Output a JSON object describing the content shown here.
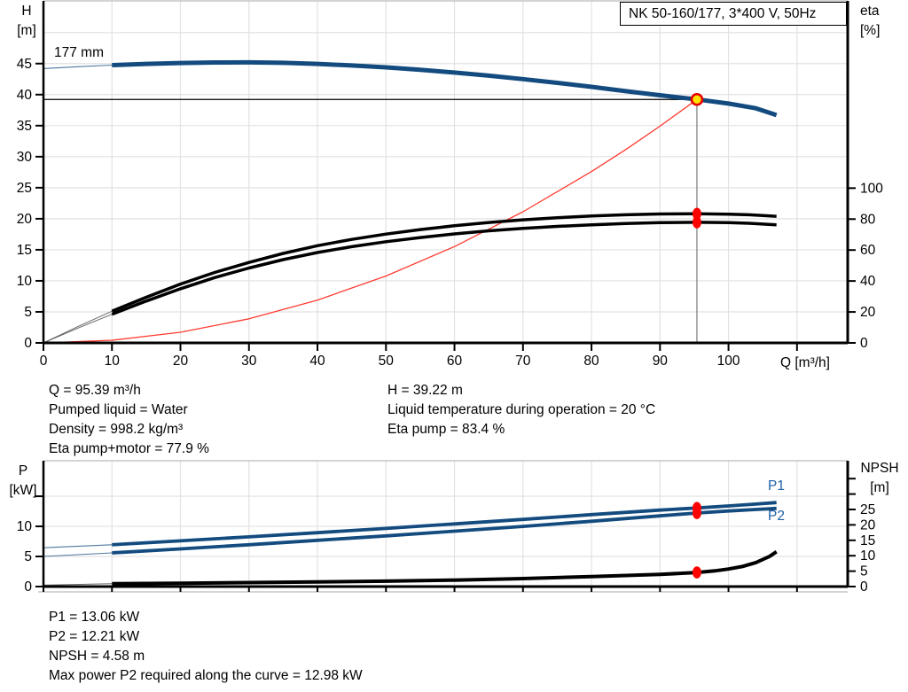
{
  "title": "NK 50-160/177, 3*400 V, 50Hz",
  "colors": {
    "curve_blue": "#134b7f",
    "curve_black": "#000000",
    "system_red": "#ff3b30",
    "marker_red": "#ff0000",
    "marker_yellow": "#ffe400",
    "marker_ring": "#e60000",
    "gridline": "#e2e2e2",
    "frame_gray": "#aaaaaa",
    "crosshair_v": "#7a7a7a",
    "crosshair_h": "#000000",
    "label_blue": "#1d5fa7",
    "thin_black": "#666666"
  },
  "top_chart": {
    "left_axis_title_line1": "H",
    "left_axis_title_line2": "[m]",
    "right_axis_title_line1": "eta",
    "right_axis_title_line2": "[%]",
    "x_axis_title": "Q [m³/h]",
    "impeller_label": "177 mm"
  },
  "bottom_chart": {
    "left_axis_title_line1": "P",
    "left_axis_title_line2": "[kW]",
    "right_axis_title_line1": "NPSH",
    "right_axis_title_line2": "[m]",
    "p1_label": "P1",
    "p2_label": "P2"
  },
  "info_top_left": [
    "Q = 95.39 m³/h",
    "Pumped liquid = Water",
    "Density = 998.2 kg/m³",
    "Eta pump+motor = 77.9 %"
  ],
  "info_top_right": [
    "H = 39.22 m",
    "Liquid temperature during operation = 20 °C",
    "Eta pump = 83.4 %"
  ],
  "info_bottom": [
    "P1 = 13.06 kW",
    "P2 = 12.21 kW",
    "NPSH = 4.58 m",
    "Max power P2 required along the curve = 12.98 kW"
  ],
  "chart_data": [
    {
      "id": "head-efficiency-chart",
      "type": "line",
      "title": "NK 50-160/177, 3*400 V, 50Hz",
      "xlabel": "Q [m³/h]",
      "ylabel_left": "H [m]",
      "ylabel_right": "eta [%]",
      "xlim": [
        0,
        117.4
      ],
      "ylim_left": [
        0,
        55.1
      ],
      "ylim_right": [
        0,
        221
      ],
      "x_ticks": [
        0,
        10,
        20,
        30,
        40,
        50,
        60,
        70,
        80,
        90,
        100,
        110
      ],
      "x_tick_labels": [
        "0",
        "10",
        "20",
        "30",
        "40",
        "50",
        "60",
        "70",
        "80",
        "90",
        "100",
        ""
      ],
      "y_ticks_left": [
        0,
        5,
        10,
        15,
        20,
        25,
        30,
        35,
        40,
        45
      ],
      "y_tick_labels_left": [
        "0",
        "5",
        "10",
        "15",
        "20",
        "25",
        "30",
        "35",
        "40",
        "45"
      ],
      "y_gridlines_left": [
        5,
        10,
        15,
        20,
        25,
        30,
        35,
        40,
        45,
        50
      ],
      "y_ticks_right": [
        0,
        20,
        40,
        60,
        80,
        100
      ],
      "y_tick_labels_right": [
        "0",
        "20",
        "40",
        "60",
        "80",
        "100"
      ],
      "series": [
        {
          "name": "system-curve",
          "axis": "left",
          "style": "red-thin",
          "thin_until": 0,
          "points": [
            [
              0,
              0
            ],
            [
              10,
              0.43
            ],
            [
              20,
              1.72
            ],
            [
              30,
              3.88
            ],
            [
              40,
              6.9
            ],
            [
              50,
              10.78
            ],
            [
              60,
              15.52
            ],
            [
              70,
              21.13
            ],
            [
              80,
              27.6
            ],
            [
              85,
              31.15
            ],
            [
              90,
              34.92
            ],
            [
              95.39,
              39.22
            ]
          ]
        },
        {
          "name": "eta-pump-curve",
          "axis": "right",
          "style": "black-thick",
          "thin_until": 10,
          "points": [
            [
              0,
              0
            ],
            [
              5,
              10.5
            ],
            [
              10,
              20.5
            ],
            [
              15,
              29.5
            ],
            [
              20,
              38
            ],
            [
              25,
              45.5
            ],
            [
              30,
              52
            ],
            [
              35,
              57.8
            ],
            [
              40,
              62.8
            ],
            [
              45,
              66.9
            ],
            [
              50,
              70.3
            ],
            [
              55,
              73.2
            ],
            [
              60,
              75.7
            ],
            [
              65,
              77.8
            ],
            [
              70,
              79.5
            ],
            [
              75,
              80.9
            ],
            [
              80,
              82
            ],
            [
              85,
              82.8
            ],
            [
              90,
              83.3
            ],
            [
              95.39,
              83.4
            ],
            [
              100,
              83.2
            ],
            [
              103,
              82.8
            ],
            [
              107,
              81.8
            ]
          ]
        },
        {
          "name": "eta-pump-motor-curve",
          "axis": "right",
          "style": "black-thick",
          "thin_until": 10,
          "points": [
            [
              0,
              0
            ],
            [
              5,
              9.5
            ],
            [
              10,
              18.5
            ],
            [
              15,
              27
            ],
            [
              20,
              35
            ],
            [
              25,
              42.2
            ],
            [
              30,
              48.4
            ],
            [
              35,
              53.8
            ],
            [
              40,
              58.4
            ],
            [
              45,
              62.2
            ],
            [
              50,
              65.4
            ],
            [
              55,
              68.1
            ],
            [
              60,
              70.4
            ],
            [
              65,
              72.4
            ],
            [
              70,
              74
            ],
            [
              75,
              75.3
            ],
            [
              80,
              76.3
            ],
            [
              85,
              77.1
            ],
            [
              90,
              77.7
            ],
            [
              95.39,
              77.9
            ],
            [
              100,
              77.7
            ],
            [
              103,
              77.3
            ],
            [
              107,
              76.3
            ]
          ]
        },
        {
          "name": "head-curve-177mm",
          "axis": "left",
          "style": "blue-thick",
          "thin_until": 10,
          "points": [
            [
              0,
              44.2
            ],
            [
              5,
              44.5
            ],
            [
              10,
              44.75
            ],
            [
              15,
              44.95
            ],
            [
              20,
              45.1
            ],
            [
              25,
              45.18
            ],
            [
              30,
              45.2
            ],
            [
              35,
              45.12
            ],
            [
              40,
              44.95
            ],
            [
              45,
              44.7
            ],
            [
              50,
              44.4
            ],
            [
              55,
              44.0
            ],
            [
              60,
              43.55
            ],
            [
              65,
              43.05
            ],
            [
              70,
              42.5
            ],
            [
              75,
              41.9
            ],
            [
              80,
              41.25
            ],
            [
              85,
              40.55
            ],
            [
              90,
              39.9
            ],
            [
              95.39,
              39.22
            ],
            [
              100,
              38.55
            ],
            [
              104,
              37.8
            ],
            [
              107,
              36.7
            ]
          ]
        }
      ],
      "crosshair": {
        "q": 95.39,
        "h": 39.22
      },
      "markers": [
        {
          "name": "eta-pump-point",
          "axis": "right",
          "q": 95.39,
          "v": 83.4,
          "kind": "red"
        },
        {
          "name": "eta-pump-motor-point",
          "axis": "right",
          "q": 95.39,
          "v": 77.9,
          "kind": "red"
        },
        {
          "name": "duty-point",
          "axis": "left",
          "q": 95.39,
          "v": 39.22,
          "kind": "yellow"
        }
      ]
    },
    {
      "id": "power-npsh-chart",
      "type": "line",
      "xlabel": "",
      "ylabel_left": "P [kW]",
      "ylabel_right": "NPSH [m]",
      "xlim": [
        0,
        117.4
      ],
      "ylim_left": [
        0,
        20.9
      ],
      "ylim_right": [
        0,
        40.8
      ],
      "x_ticks": [
        0,
        10,
        20,
        30,
        40,
        50,
        60,
        70,
        80,
        90,
        100,
        110
      ],
      "x_tick_labels": [
        "",
        "",
        "",
        "",
        "",
        "",
        "",
        "",
        "",
        "",
        "",
        ""
      ],
      "y_ticks_left": [
        0,
        5,
        10,
        15
      ],
      "y_tick_labels_left": [
        "0",
        "5",
        "10",
        ""
      ],
      "y_gridlines_left": [
        5,
        10,
        15
      ],
      "y_ticks_right": [
        0,
        5,
        10,
        15,
        20,
        25,
        30,
        35
      ],
      "y_tick_labels_right": [
        "0",
        "5",
        "10",
        "15",
        "20",
        "25",
        "",
        ""
      ],
      "series": [
        {
          "name": "p1-curve",
          "axis": "left",
          "style": "blue-mid",
          "thin_until": 10,
          "points": [
            [
              0,
              6.45
            ],
            [
              10,
              6.95
            ],
            [
              20,
              7.6
            ],
            [
              30,
              8.25
            ],
            [
              40,
              8.95
            ],
            [
              50,
              9.65
            ],
            [
              60,
              10.4
            ],
            [
              70,
              11.15
            ],
            [
              80,
              11.95
            ],
            [
              90,
              12.7
            ],
            [
              95.39,
              13.06
            ],
            [
              100,
              13.4
            ],
            [
              104,
              13.7
            ],
            [
              107,
              13.95
            ]
          ]
        },
        {
          "name": "p2-curve",
          "axis": "left",
          "style": "blue-mid",
          "thin_until": 10,
          "points": [
            [
              0,
              5.0
            ],
            [
              10,
              5.6
            ],
            [
              20,
              6.25
            ],
            [
              30,
              6.95
            ],
            [
              40,
              7.68
            ],
            [
              50,
              8.42
            ],
            [
              60,
              9.2
            ],
            [
              70,
              10.0
            ],
            [
              80,
              10.85
            ],
            [
              90,
              11.75
            ],
            [
              95.39,
              12.21
            ],
            [
              100,
              12.55
            ],
            [
              104,
              12.8
            ],
            [
              107,
              12.98
            ]
          ]
        },
        {
          "name": "npsh-curve",
          "axis": "right",
          "style": "black-npsh",
          "thin_until": 10,
          "points": [
            [
              0,
              0.45
            ],
            [
              10,
              0.95
            ],
            [
              20,
              1.1
            ],
            [
              30,
              1.3
            ],
            [
              40,
              1.5
            ],
            [
              50,
              1.75
            ],
            [
              60,
              2.1
            ],
            [
              70,
              2.6
            ],
            [
              80,
              3.25
            ],
            [
              85,
              3.6
            ],
            [
              90,
              3.95
            ],
            [
              95.39,
              4.58
            ],
            [
              98,
              5.1
            ],
            [
              100,
              5.7
            ],
            [
              102,
              6.5
            ],
            [
              104,
              7.8
            ],
            [
              106,
              9.8
            ],
            [
              107,
              11.3
            ]
          ]
        }
      ],
      "markers": [
        {
          "name": "p1-point",
          "axis": "left",
          "q": 95.39,
          "v": 13.06,
          "kind": "red"
        },
        {
          "name": "p2-point",
          "axis": "left",
          "q": 95.39,
          "v": 12.21,
          "kind": "red"
        },
        {
          "name": "npsh-point",
          "axis": "right",
          "q": 95.39,
          "v": 4.58,
          "kind": "red"
        }
      ]
    }
  ]
}
